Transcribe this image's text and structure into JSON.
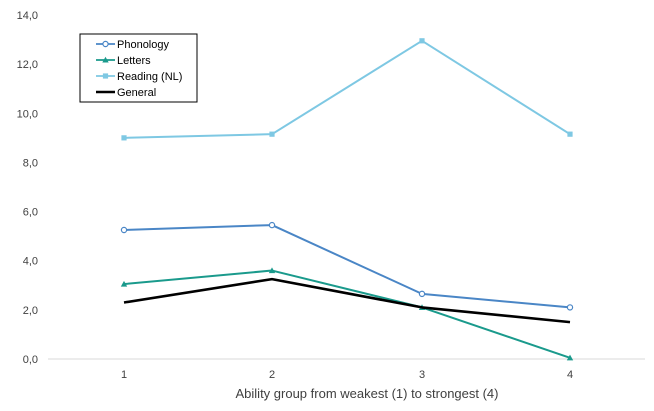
{
  "chart_data": {
    "type": "line",
    "title": "",
    "xlabel": "Ability group from weakest (1) to strongest (4)",
    "ylabel": "",
    "categories": [
      "1",
      "2",
      "3",
      "4"
    ],
    "ylim": [
      0,
      14
    ],
    "yticks": [
      0,
      2,
      4,
      6,
      8,
      10,
      12,
      14
    ],
    "ytick_labels": [
      "0,0",
      "2,0",
      "4,0",
      "6,0",
      "8,0",
      "10,0",
      "12,0",
      "14,0"
    ],
    "grid": false,
    "legend_position": "top-left",
    "series": [
      {
        "name": "Phonology",
        "values": [
          5.25,
          5.45,
          2.65,
          2.1
        ],
        "color": "#4a86c6",
        "marker": "circle-open"
      },
      {
        "name": "Letters",
        "values": [
          3.05,
          3.6,
          2.1,
          0.05
        ],
        "color": "#1a9a8c",
        "marker": "triangle"
      },
      {
        "name": "Reading (NL)",
        "values": [
          9.0,
          9.15,
          12.95,
          9.15
        ],
        "color": "#7ec8e3",
        "marker": "square"
      },
      {
        "name": "General",
        "values": [
          2.3,
          3.25,
          2.1,
          1.5
        ],
        "color": "#000000",
        "marker": "none"
      }
    ]
  }
}
